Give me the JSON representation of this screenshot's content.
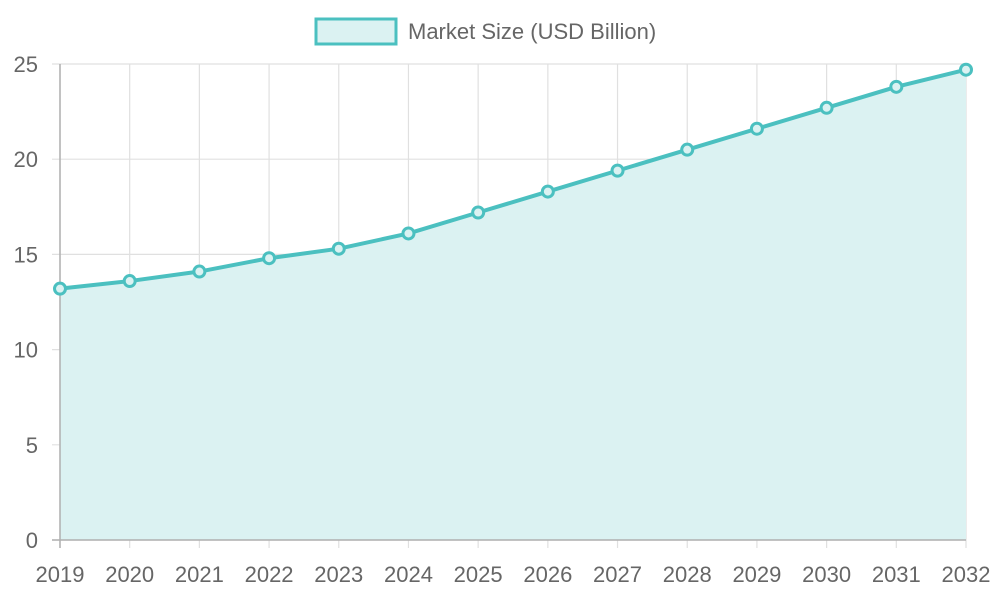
{
  "chart_data": {
    "type": "area",
    "title": "",
    "xlabel": "",
    "ylabel": "",
    "x": [
      "2019",
      "2020",
      "2021",
      "2022",
      "2023",
      "2024",
      "2025",
      "2026",
      "2027",
      "2028",
      "2029",
      "2030",
      "2031",
      "2032"
    ],
    "series": [
      {
        "name": "Market Size (USD Billion)",
        "values": [
          13.2,
          13.6,
          14.1,
          14.8,
          15.3,
          16.1,
          17.2,
          18.3,
          19.4,
          20.5,
          21.6,
          22.7,
          23.8,
          24.7
        ]
      }
    ],
    "ylim": [
      0,
      25
    ],
    "yticks": [
      "0",
      "5",
      "10",
      "15",
      "20",
      "25"
    ],
    "grid": true,
    "legend_position": "top",
    "colors": {
      "line": "#4bc0c0",
      "fill": "#dbf2f2",
      "grid": "#e0e0e0",
      "axis": "#b0b0b0",
      "text": "#666666"
    }
  }
}
